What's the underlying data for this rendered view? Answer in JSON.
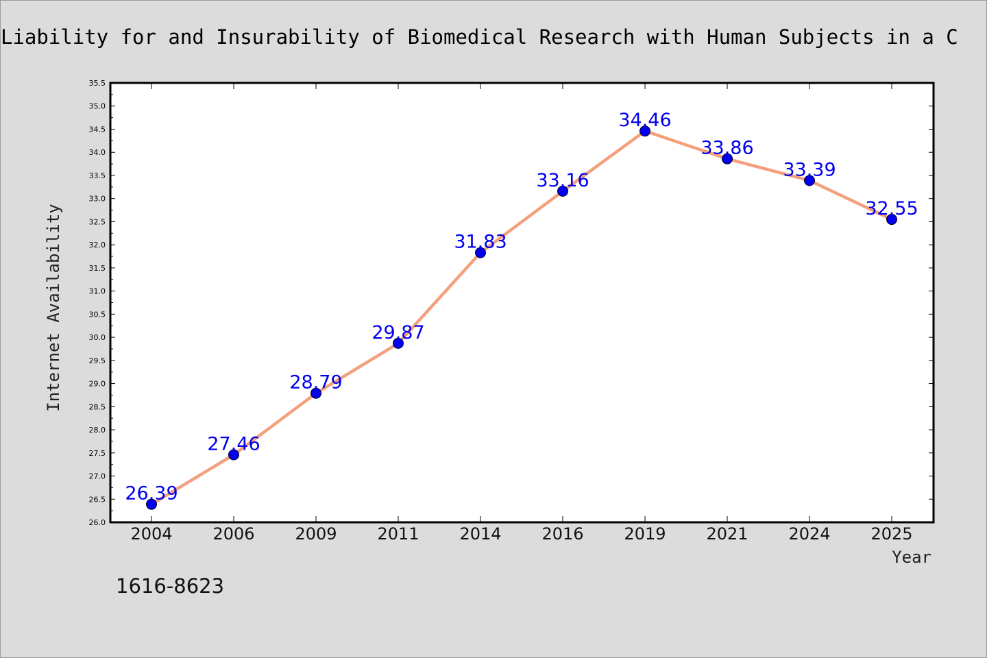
{
  "chart_data": {
    "type": "line",
    "title": "Liability for and Insurability of Biomedical Research with Human Subjects in a C",
    "xlabel": "Year",
    "ylabel": "Internet Availability",
    "categories": [
      "2004",
      "2006",
      "2009",
      "2011",
      "2014",
      "2016",
      "2019",
      "2021",
      "2024",
      "2025"
    ],
    "series": [
      {
        "values": [
          26.39,
          27.46,
          28.79,
          29.87,
          31.83,
          33.16,
          34.46,
          33.86,
          33.39,
          32.55
        ],
        "labels": [
          "26.39",
          "27.46",
          "28.79",
          "29.87",
          "31.83",
          "33.16",
          "34.46",
          "33.86",
          "33.39",
          "32.55"
        ]
      }
    ],
    "ylim": [
      26.0,
      35.5
    ],
    "ytick_step": 0.5,
    "ytick_labels": [
      "26.0",
      "26.5",
      "27.0",
      "27.5",
      "28.0",
      "28.5",
      "29.0",
      "29.5",
      "30.0",
      "30.5",
      "31.0",
      "31.5",
      "32.0",
      "32.5",
      "33.0",
      "33.5",
      "34.0",
      "34.5",
      "35.0",
      "35.5"
    ],
    "grid": false,
    "legend": "none",
    "colors": {
      "line": "#f4a07e",
      "marker": "#0000ee",
      "data_label": "#0000ee",
      "plot_background": "#ffffff",
      "figure_background": "#dcdcdc"
    }
  },
  "footnote": "1616-8623"
}
